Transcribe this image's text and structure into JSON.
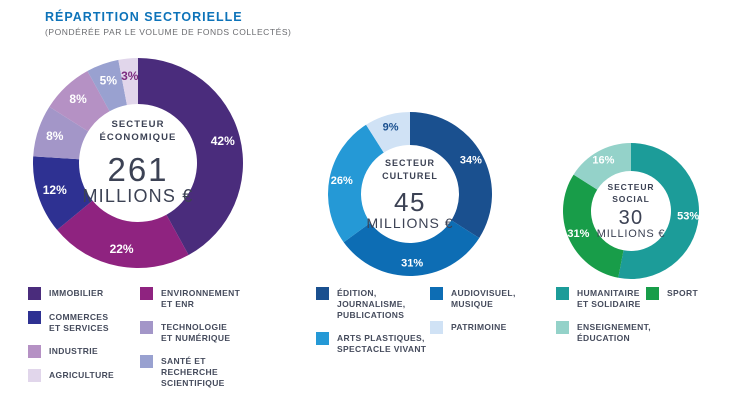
{
  "header": {
    "title": "RÉPARTITION SECTORIELLE",
    "subtitle": "(PONDÉRÉE PAR LE VOLUME DE FONDS COLLECTÉS)",
    "title_color": "#0d73b9",
    "subtitle_color": "#6b6c70"
  },
  "chart_data": [
    {
      "type": "pie",
      "id": "secteur-economique",
      "center_label": "SECTEUR\nÉCONOMIQUE",
      "center_value": "261",
      "center_unit": "MILLIONS €",
      "slices": [
        {
          "id": "immobilier",
          "label": "IMMOBILIER",
          "pct": 42,
          "color": "#4a2c7c"
        },
        {
          "id": "environnement-et-enr",
          "label": "ENVIRONNEMENT ET ENR",
          "pct": 22,
          "color": "#8f2380"
        },
        {
          "id": "commerces-et-services",
          "label": "COMMERCES ET SERVICES",
          "pct": 12,
          "color": "#2e3192"
        },
        {
          "id": "technologie-et-numerique",
          "label": "TECHNOLOGIE ET NUMÉRIQUE",
          "pct": 8,
          "color": "#a396c8"
        },
        {
          "id": "industrie",
          "label": "INDUSTRIE",
          "pct": 8,
          "color": "#b591c4"
        },
        {
          "id": "sante-et-recherche-scientifique",
          "label": "SANTÉ ET RECHERCHE SCIENTIFIQUE",
          "pct": 5,
          "color": "#99a1d0"
        },
        {
          "id": "agriculture",
          "label": "AGRICULTURE",
          "pct": 3,
          "color": "#e1d6eb",
          "text_color": "#7c2c80"
        }
      ],
      "legend_columns": [
        [
          {
            "label": "IMMOBILIER",
            "color": "#4a2c7c"
          },
          {
            "label": "COMMERCES\nET SERVICES",
            "color": "#2e3192"
          },
          {
            "label": "INDUSTRIE",
            "color": "#b591c4"
          },
          {
            "label": "AGRICULTURE",
            "color": "#e1d6eb"
          }
        ],
        [
          {
            "label": "ENVIRONNEMENT\nET ENR",
            "color": "#8f2380"
          },
          {
            "label": "TECHNOLOGIE\nET NUMÉRIQUE",
            "color": "#a396c8"
          },
          {
            "label": "SANTÉ ET RECHERCHE\nSCIENTIFIQUE",
            "color": "#99a1d0"
          }
        ]
      ],
      "layout": {
        "size": 210,
        "inner_radius": 59,
        "pct_font": 12,
        "legend_position": "below"
      }
    },
    {
      "type": "pie",
      "id": "secteur-culturel",
      "center_label": "SECTEUR\nCULTUREL",
      "center_value": "45",
      "center_unit": "MILLIONS €",
      "slices": [
        {
          "id": "edition-journalisme-publications",
          "label": "ÉDITION, JOURNALISME, PUBLICATIONS",
          "pct": 34,
          "color": "#1a508f"
        },
        {
          "id": "audiovisuel-musique",
          "label": "AUDIOVISUEL, MUSIQUE",
          "pct": 31,
          "color": "#0d6db4"
        },
        {
          "id": "arts-plastiques-spectacle-vivant",
          "label": "ARTS PLASTIQUES, SPECTACLE VIVANT",
          "pct": 26,
          "color": "#2599d6"
        },
        {
          "id": "patrimoine",
          "label": "PATRIMOINE",
          "pct": 9,
          "color": "#d0e2f5",
          "text_color": "#1a508f"
        }
      ],
      "legend_columns": [
        [
          {
            "label": "ÉDITION,\nJOURNALISME,\nPUBLICATIONS",
            "color": "#1a508f"
          },
          {
            "label": "ARTS PLASTIQUES,\nSPECTACLE VIVANT",
            "color": "#2599d6"
          }
        ],
        [
          {
            "label": "AUDIOVISUEL,\nMUSIQUE",
            "color": "#0d6db4"
          },
          {
            "label": "PATRIMOINE",
            "color": "#d0e2f5"
          }
        ]
      ],
      "layout": {
        "size": 164,
        "inner_radius": 49,
        "pct_font": 11,
        "legend_position": "below"
      }
    },
    {
      "type": "pie",
      "id": "secteur-social",
      "center_label": "SECTEUR\nSOCIAL",
      "center_value": "30",
      "center_unit": "MILLIONS €",
      "slices": [
        {
          "id": "humanitaire-et-solidaire",
          "label": "HUMANITAIRE ET SOLIDAIRE",
          "pct": 53,
          "color": "#1c9c99"
        },
        {
          "id": "sport",
          "label": "SPORT",
          "pct": 31,
          "color": "#189d49"
        },
        {
          "id": "enseignement-education",
          "label": "ENSEIGNEMENT, ÉDUCATION",
          "pct": 16,
          "color": "#94d2c9"
        }
      ],
      "legend_columns": [
        [
          {
            "label": "HUMANITAIRE\nET SOLIDAIRE",
            "color": "#1c9c99"
          },
          {
            "label": "ENSEIGNEMENT,\nÉDUCATION",
            "color": "#94d2c9"
          }
        ],
        [
          {
            "label": "SPORT",
            "color": "#189d49"
          }
        ]
      ],
      "layout": {
        "size": 136,
        "inner_radius": 40,
        "pct_font": 11,
        "legend_position": "below"
      }
    }
  ]
}
